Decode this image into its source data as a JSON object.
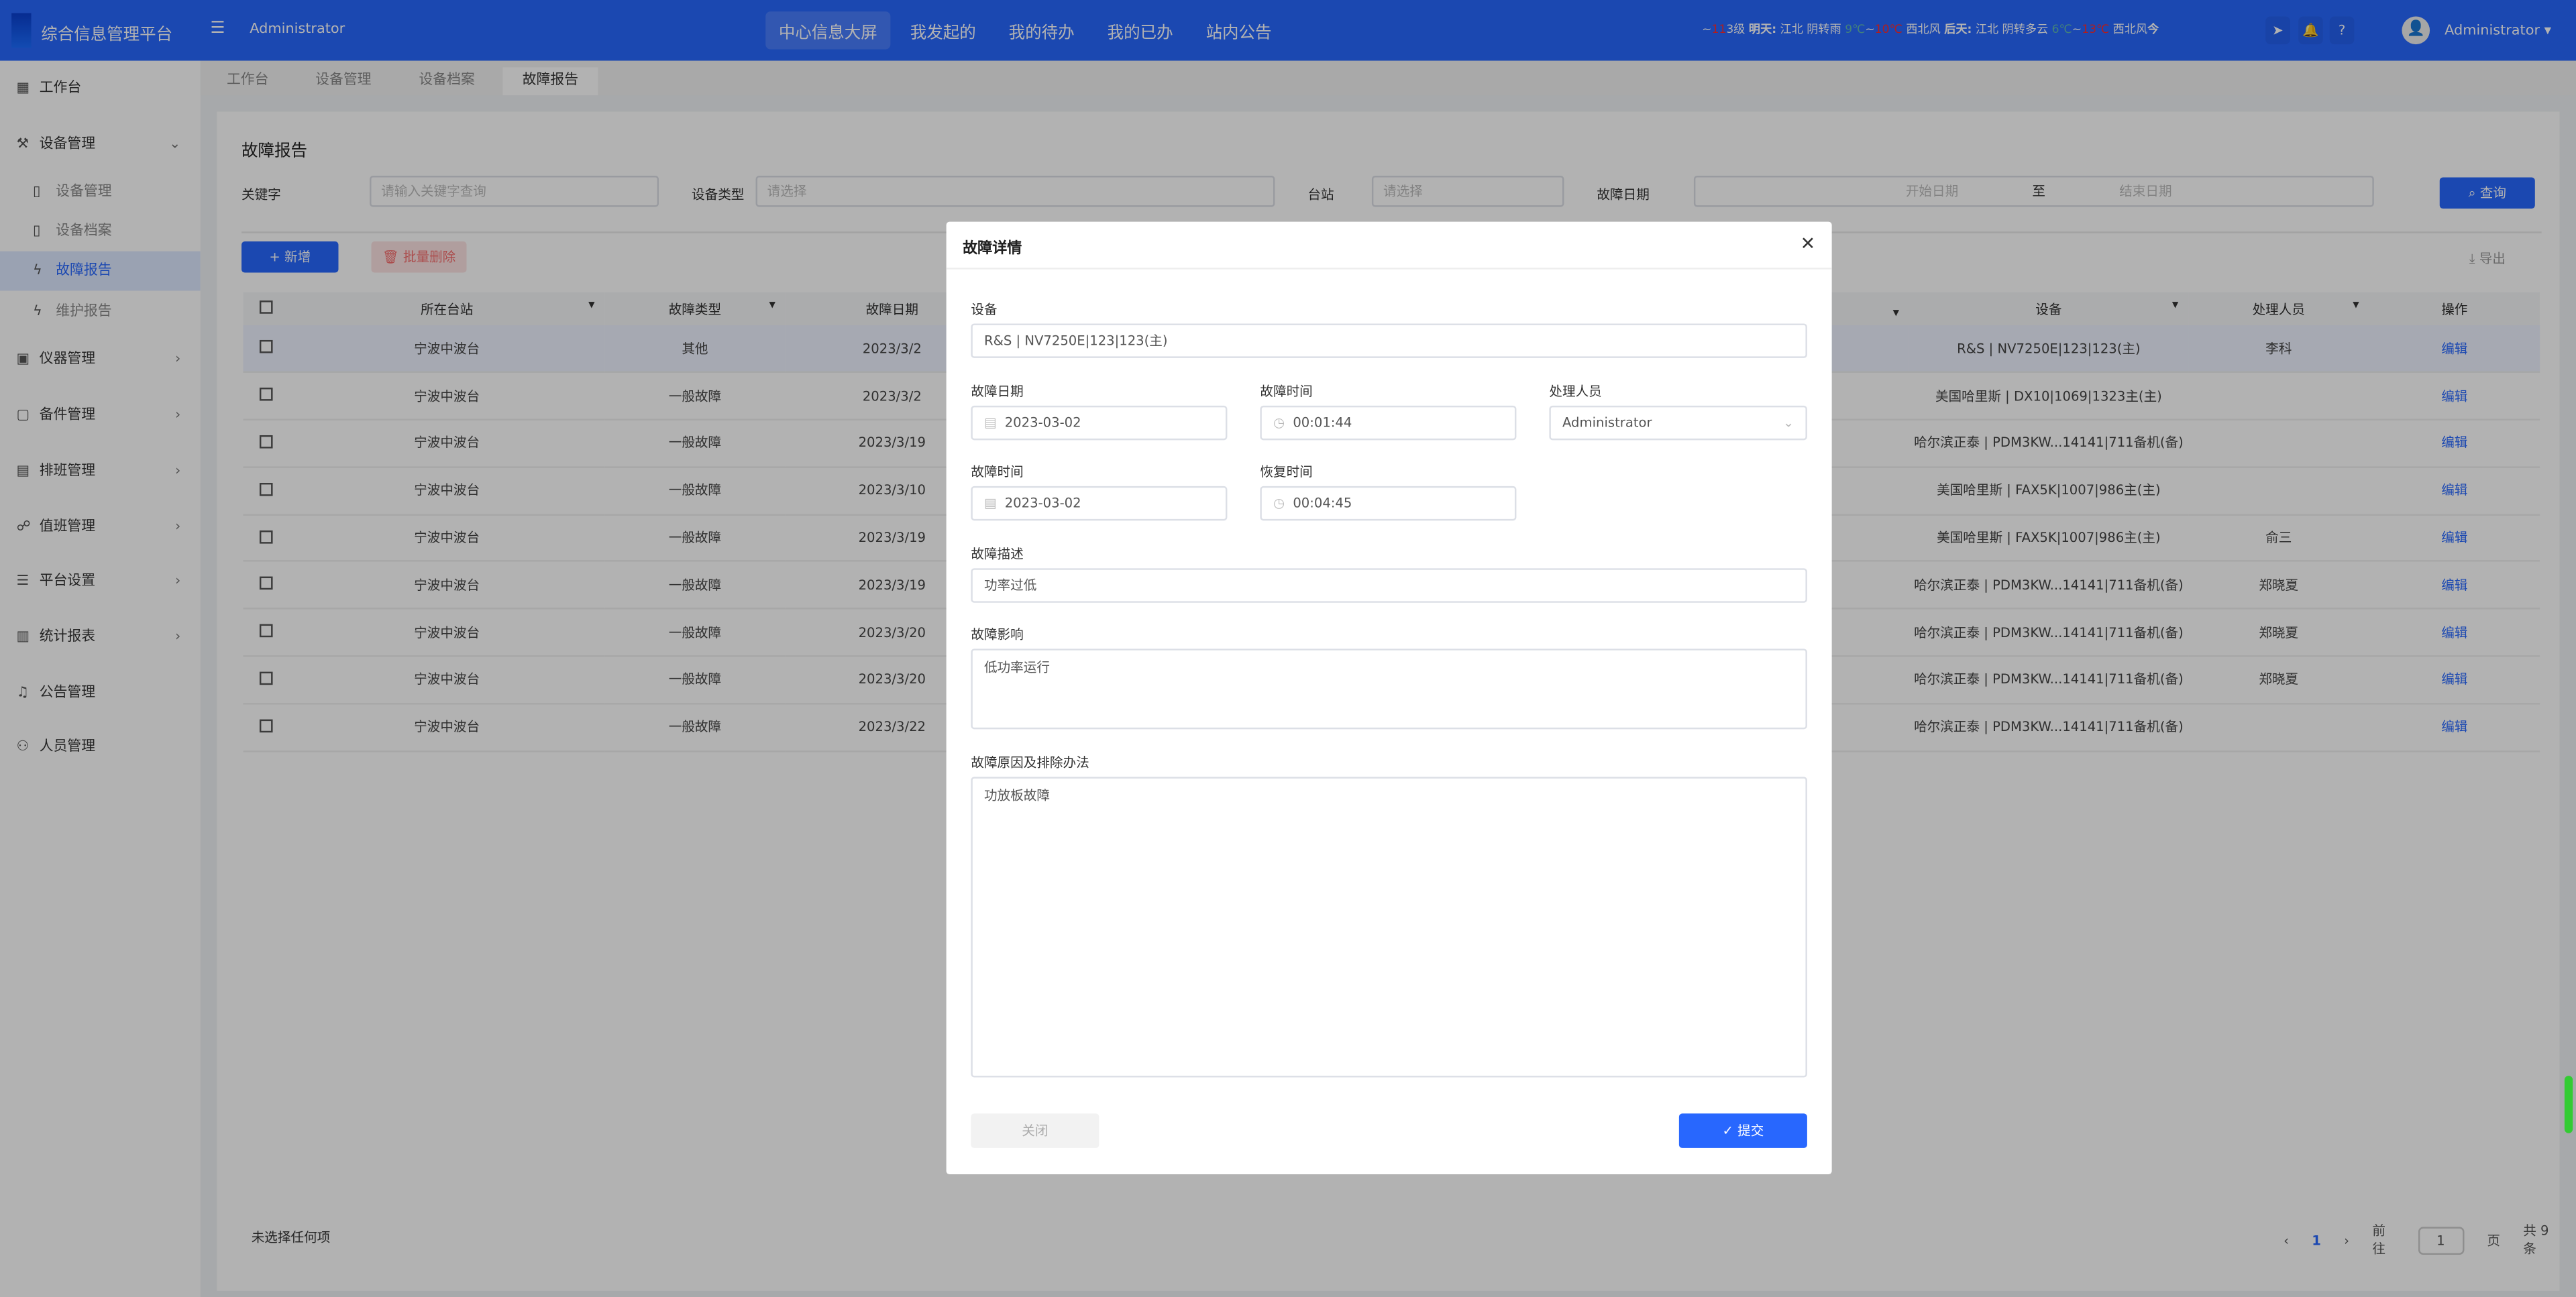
{
  "header": {
    "brand": "综合信息管理平台",
    "user_label": "Administrator",
    "nav": [
      "中心信息大屏",
      "我发起的",
      "我的待办",
      "我的已办",
      "站内公告"
    ],
    "weather": {
      "s1": "~",
      "s2": "11",
      "s3": "3级 ",
      "s4": "明天:",
      "s5": " 江北 阴转雨 ",
      "s6": "9℃",
      "s7": "~",
      "s8": "10℃",
      "s9": " 西北风 ",
      "s10": "后天:",
      "s11": " 江北 阴转多云 ",
      "s12": "6℃",
      "s13": "~",
      "s14": "13℃",
      "s15": " 西北风",
      "s16": "今天:"
    },
    "user": "Administrator ▾"
  },
  "sidebar": {
    "items": [
      {
        "label": "工作台",
        "icon": "dashboard-icon"
      },
      {
        "label": "设备管理",
        "icon": "tools-icon"
      },
      {
        "label": "设备管理"
      },
      {
        "label": "设备档案"
      },
      {
        "label": "故障报告"
      },
      {
        "label": "维护报告"
      },
      {
        "label": "仪器管理"
      },
      {
        "label": "备件管理"
      },
      {
        "label": "排班管理"
      },
      {
        "label": "值班管理"
      },
      {
        "label": "平台设置"
      },
      {
        "label": "统计报表"
      },
      {
        "label": "公告管理"
      },
      {
        "label": "人员管理"
      }
    ]
  },
  "tabs": [
    "工作台",
    "设备管理",
    "设备档案",
    "故障报告"
  ],
  "page": {
    "title": "故障报告",
    "filters": {
      "keyword_label": "关键字",
      "keyword_placeholder": "请输入关键字查询",
      "type_label": "设备类型",
      "type_placeholder": "请选择",
      "station_label": "台站",
      "station_placeholder": "请选择",
      "date_label": "故障日期",
      "start_placeholder": "开始日期",
      "to": "至",
      "end_placeholder": "结束日期",
      "query": "查询"
    },
    "add": "+ 新增",
    "batch_delete": "批量删除",
    "export": "导出",
    "columns": [
      "所在台站",
      "故障类型",
      "故障日期",
      "",
      "设备",
      "处理人员",
      "操作"
    ],
    "rows": [
      [
        "宁波中波台",
        "其他",
        "2023/3/2",
        "R&S | NV7250E|123|123(主)",
        "李科",
        "编辑"
      ],
      [
        "宁波中波台",
        "一般故障",
        "2023/3/2",
        "美国哈里斯 | DX10|1069|1323主(主)",
        "",
        "编辑"
      ],
      [
        "宁波中波台",
        "一般故障",
        "2023/3/19",
        "哈尔滨正泰 | PDM3KW...14141|711备机(备)",
        "",
        "编辑"
      ],
      [
        "宁波中波台",
        "一般故障",
        "2023/3/10",
        "美国哈里斯 | FAX5K|1007|986主(主)",
        "",
        "编辑"
      ],
      [
        "宁波中波台",
        "一般故障",
        "2023/3/19",
        "美国哈里斯 | FAX5K|1007|986主(主)",
        "俞三",
        "编辑"
      ],
      [
        "宁波中波台",
        "一般故障",
        "2023/3/19",
        "哈尔滨正泰 | PDM3KW...14141|711备机(备)",
        "郑晓夏",
        "编辑"
      ],
      [
        "宁波中波台",
        "一般故障",
        "2023/3/20",
        "哈尔滨正泰 | PDM3KW...14141|711备机(备)",
        "郑晓夏",
        "编辑"
      ],
      [
        "宁波中波台",
        "一般故障",
        "2023/3/20",
        "哈尔滨正泰 | PDM3KW...14141|711备机(备)",
        "郑晓夏",
        "编辑"
      ],
      [
        "宁波中波台",
        "一般故障",
        "2023/3/22",
        "哈尔滨正泰 | PDM3KW...14141|711备机(备)",
        "",
        "编辑"
      ]
    ],
    "no_selection": "未选择任何项",
    "pager": {
      "current": "1",
      "goto": "前往",
      "page_input": "1",
      "page_unit": "页",
      "total": "共 9 条"
    }
  },
  "modal": {
    "title": "故障详情",
    "device_label": "设备",
    "device": "R&S | NV7250E|123|123(主)",
    "fault_date_label": "故障日期",
    "fault_date": "2023-03-02",
    "fault_time_label": "故障时间",
    "fault_time": "00:01:44",
    "handler_label": "处理人员",
    "handler": "Administrator",
    "fault_time2_label": "故障时间",
    "fault_date2": "2023-03-02",
    "recover_label": "恢复时间",
    "recover_time": "00:04:45",
    "desc_label": "故障描述",
    "desc": "功率过低",
    "impact_label": "故障影响",
    "impact": "低功率运行",
    "cause_label": "故障原因及排除办法",
    "cause": "功放板故障",
    "close": "关闭",
    "submit": "✓ 提交"
  },
  "colors": {
    "primary": "#2867fe",
    "danger": "#f56c6c"
  }
}
